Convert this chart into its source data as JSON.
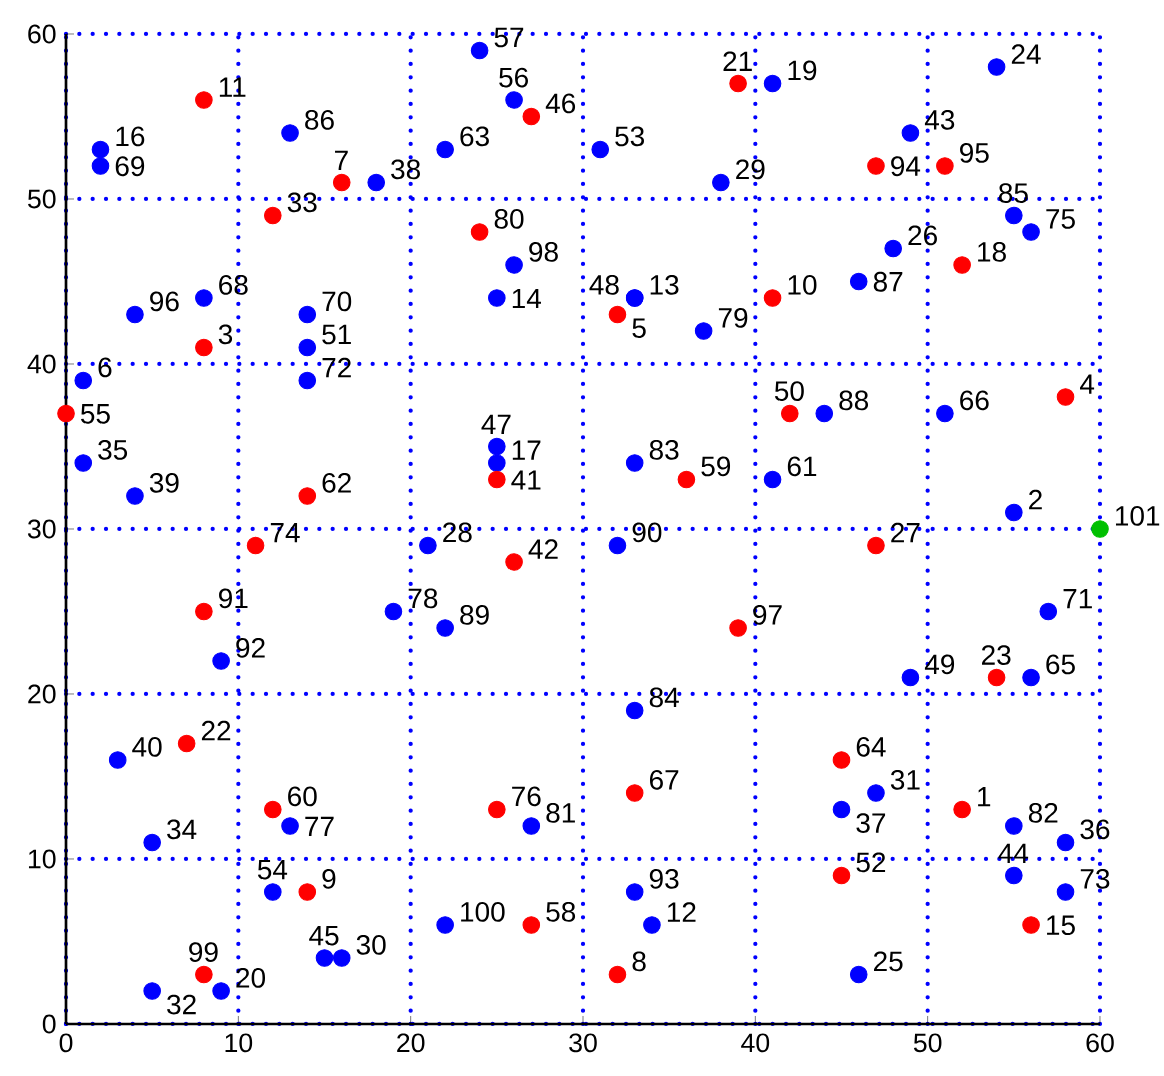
{
  "chart_data": {
    "type": "scatter",
    "xlim": [
      0,
      60
    ],
    "ylim": [
      0,
      60
    ],
    "xticks": [
      0,
      10,
      20,
      30,
      40,
      50,
      60
    ],
    "yticks": [
      0,
      10,
      20,
      30,
      40,
      50,
      60
    ],
    "grid": true,
    "marker": "circle",
    "series": [
      {
        "color": "#0000ff",
        "x": [
          55,
          1,
          34,
          33,
          25,
          2,
          25,
          41,
          9,
          54,
          46,
          48,
          21,
          38,
          16,
          47,
          5,
          5,
          1,
          58,
          45,
          18,
          4,
          3,
          49,
          55,
          15,
          25,
          33,
          49,
          14,
          31,
          12,
          26,
          24,
          41,
          22,
          56,
          51,
          8,
          2,
          14,
          57,
          14,
          58,
          56,
          13,
          19,
          37,
          27,
          55,
          33,
          33,
          55,
          13,
          46,
          44,
          22,
          32,
          9,
          33,
          4,
          26,
          22
        ],
        "values": [
          31,
          39,
          6,
          44,
          44,
          53,
          34,
          57,
          2,
          58,
          3,
          47,
          29,
          51,
          4,
          14,
          2,
          11,
          34,
          11,
          13,
          51,
          32,
          16,
          54,
          9,
          4,
          35,
          44,
          21,
          41,
          53,
          8,
          56,
          59,
          33,
          53,
          21,
          37,
          44,
          52,
          43,
          25,
          39,
          8,
          48,
          12,
          25,
          42,
          12,
          12,
          34,
          19,
          49,
          54,
          45,
          37,
          24,
          29,
          22,
          8,
          43,
          46,
          6
        ]
      },
      {
        "color": "#ff0000",
        "x": [
          52,
          8,
          58,
          32,
          16,
          32,
          14,
          41,
          8,
          56,
          52,
          39,
          7,
          54,
          47,
          12,
          25,
          26,
          27,
          42,
          45,
          0,
          27,
          36,
          12,
          14,
          45,
          33,
          11,
          25,
          24,
          8,
          47,
          51,
          39,
          8
        ],
        "values": [
          13,
          41,
          38,
          43,
          51,
          3,
          8,
          44,
          56,
          6,
          46,
          57,
          17,
          21,
          29,
          49,
          33,
          28,
          55,
          37,
          9,
          37,
          6,
          33,
          13,
          32,
          16,
          14,
          29,
          13,
          48,
          25,
          52,
          52,
          24,
          3
        ]
      },
      {
        "color": "#00c000",
        "x": [
          60
        ],
        "values": [
          30
        ]
      }
    ],
    "annotations": [
      {
        "text": "1",
        "x": 52,
        "y": 13
      },
      {
        "text": "2",
        "x": 55,
        "y": 31
      },
      {
        "text": "3",
        "x": 8,
        "y": 41
      },
      {
        "text": "4",
        "x": 58,
        "y": 38
      },
      {
        "text": "5",
        "x": 32,
        "y": 43
      },
      {
        "text": "6",
        "x": 1,
        "y": 39
      },
      {
        "text": "7",
        "x": 16,
        "y": 51
      },
      {
        "text": "8",
        "x": 32,
        "y": 3
      },
      {
        "text": "9",
        "x": 14,
        "y": 8
      },
      {
        "text": "10",
        "x": 41,
        "y": 44
      },
      {
        "text": "11",
        "x": 8,
        "y": 56
      },
      {
        "text": "12",
        "x": 34,
        "y": 6
      },
      {
        "text": "13",
        "x": 33,
        "y": 44
      },
      {
        "text": "14",
        "x": 25,
        "y": 44
      },
      {
        "text": "15",
        "x": 56,
        "y": 6
      },
      {
        "text": "16",
        "x": 2,
        "y": 53
      },
      {
        "text": "17",
        "x": 25,
        "y": 34
      },
      {
        "text": "18",
        "x": 52,
        "y": 46
      },
      {
        "text": "19",
        "x": 41,
        "y": 57
      },
      {
        "text": "20",
        "x": 9,
        "y": 2
      },
      {
        "text": "21",
        "x": 39,
        "y": 57
      },
      {
        "text": "22",
        "x": 7,
        "y": 17
      },
      {
        "text": "23",
        "x": 54,
        "y": 21
      },
      {
        "text": "24",
        "x": 54,
        "y": 58
      },
      {
        "text": "25",
        "x": 46,
        "y": 3
      },
      {
        "text": "26",
        "x": 48,
        "y": 47
      },
      {
        "text": "27",
        "x": 47,
        "y": 29
      },
      {
        "text": "28",
        "x": 21,
        "y": 29
      },
      {
        "text": "29",
        "x": 38,
        "y": 51
      },
      {
        "text": "30",
        "x": 16,
        "y": 4
      },
      {
        "text": "31",
        "x": 47,
        "y": 14
      },
      {
        "text": "32",
        "x": 5,
        "y": 2
      },
      {
        "text": "33",
        "x": 12,
        "y": 49
      },
      {
        "text": "34",
        "x": 5,
        "y": 11
      },
      {
        "text": "35",
        "x": 1,
        "y": 34
      },
      {
        "text": "36",
        "x": 58,
        "y": 11
      },
      {
        "text": "37",
        "x": 45,
        "y": 13
      },
      {
        "text": "38",
        "x": 18,
        "y": 51
      },
      {
        "text": "39",
        "x": 4,
        "y": 32
      },
      {
        "text": "40",
        "x": 3,
        "y": 16
      },
      {
        "text": "41",
        "x": 25,
        "y": 33
      },
      {
        "text": "42",
        "x": 26,
        "y": 28
      },
      {
        "text": "43",
        "x": 49,
        "y": 54
      },
      {
        "text": "44",
        "x": 55,
        "y": 9
      },
      {
        "text": "45",
        "x": 15,
        "y": 4
      },
      {
        "text": "46",
        "x": 27,
        "y": 55
      },
      {
        "text": "47",
        "x": 25,
        "y": 35
      },
      {
        "text": "48",
        "x": 33,
        "y": 44
      },
      {
        "text": "49",
        "x": 49,
        "y": 21
      },
      {
        "text": "50",
        "x": 42,
        "y": 37
      },
      {
        "text": "51",
        "x": 14,
        "y": 41
      },
      {
        "text": "52",
        "x": 45,
        "y": 9
      },
      {
        "text": "53",
        "x": 31,
        "y": 53
      },
      {
        "text": "54",
        "x": 12,
        "y": 8
      },
      {
        "text": "55",
        "x": 0,
        "y": 37
      },
      {
        "text": "56",
        "x": 26,
        "y": 56
      },
      {
        "text": "57",
        "x": 24,
        "y": 59
      },
      {
        "text": "58",
        "x": 27,
        "y": 6
      },
      {
        "text": "59",
        "x": 36,
        "y": 33
      },
      {
        "text": "60",
        "x": 12,
        "y": 13
      },
      {
        "text": "61",
        "x": 41,
        "y": 33
      },
      {
        "text": "62",
        "x": 14,
        "y": 32
      },
      {
        "text": "63",
        "x": 22,
        "y": 53
      },
      {
        "text": "64",
        "x": 45,
        "y": 16
      },
      {
        "text": "65",
        "x": 56,
        "y": 21
      },
      {
        "text": "66",
        "x": 51,
        "y": 37
      },
      {
        "text": "67",
        "x": 33,
        "y": 14
      },
      {
        "text": "68",
        "x": 8,
        "y": 44
      },
      {
        "text": "69",
        "x": 2,
        "y": 52
      },
      {
        "text": "70",
        "x": 14,
        "y": 43
      },
      {
        "text": "71",
        "x": 57,
        "y": 25
      },
      {
        "text": "72",
        "x": 14,
        "y": 39
      },
      {
        "text": "73",
        "x": 58,
        "y": 8
      },
      {
        "text": "74",
        "x": 11,
        "y": 29
      },
      {
        "text": "75",
        "x": 56,
        "y": 48
      },
      {
        "text": "76",
        "x": 25,
        "y": 13
      },
      {
        "text": "77",
        "x": 13,
        "y": 12
      },
      {
        "text": "78",
        "x": 19,
        "y": 25
      },
      {
        "text": "79",
        "x": 37,
        "y": 42
      },
      {
        "text": "80",
        "x": 24,
        "y": 48
      },
      {
        "text": "81",
        "x": 27,
        "y": 12
      },
      {
        "text": "82",
        "x": 55,
        "y": 12
      },
      {
        "text": "83",
        "x": 33,
        "y": 34
      },
      {
        "text": "84",
        "x": 33,
        "y": 19
      },
      {
        "text": "85",
        "x": 55,
        "y": 49
      },
      {
        "text": "86",
        "x": 13,
        "y": 54
      },
      {
        "text": "87",
        "x": 46,
        "y": 45
      },
      {
        "text": "88",
        "x": 44,
        "y": 37
      },
      {
        "text": "89",
        "x": 22,
        "y": 24
      },
      {
        "text": "90",
        "x": 32,
        "y": 29
      },
      {
        "text": "91",
        "x": 8,
        "y": 25
      },
      {
        "text": "92",
        "x": 9,
        "y": 22
      },
      {
        "text": "93",
        "x": 33,
        "y": 8
      },
      {
        "text": "94",
        "x": 47,
        "y": 52
      },
      {
        "text": "95",
        "x": 51,
        "y": 52
      },
      {
        "text": "96",
        "x": 4,
        "y": 43
      },
      {
        "text": "97",
        "x": 39,
        "y": 24
      },
      {
        "text": "98",
        "x": 26,
        "y": 46
      },
      {
        "text": "99",
        "x": 8,
        "y": 3
      },
      {
        "text": "100",
        "x": 22,
        "y": 6
      },
      {
        "text": "101",
        "x": 60,
        "y": 30
      }
    ]
  }
}
